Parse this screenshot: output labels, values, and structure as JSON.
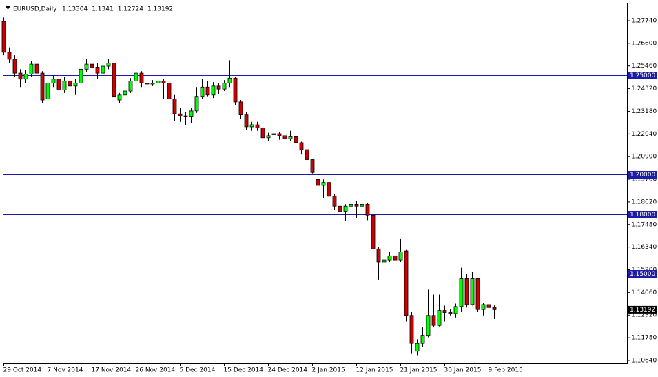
{
  "chart_data": {
    "type": "candlestick",
    "title": "EURUSD,Daily",
    "bull_color": "#00ff00",
    "bear_color": "#cc0000",
    "level_color": "#1c1ca8",
    "ylim": [
      1.105,
      1.2878
    ],
    "yticks": [
      {
        "value": 1.2774,
        "label": "1.27740"
      },
      {
        "value": 1.266,
        "label": "1.26600"
      },
      {
        "value": 1.2546,
        "label": "1.25460"
      },
      {
        "value": 1.2432,
        "label": "1.24320"
      },
      {
        "value": 1.2318,
        "label": "1.23180"
      },
      {
        "value": 1.2204,
        "label": "1.22040"
      },
      {
        "value": 1.209,
        "label": "1.20900"
      },
      {
        "value": 1.1976,
        "label": "1.19760"
      },
      {
        "value": 1.1862,
        "label": "1.18620"
      },
      {
        "value": 1.1748,
        "label": "1.17480"
      },
      {
        "value": 1.1634,
        "label": "1.16340"
      },
      {
        "value": 1.152,
        "label": "1.15200"
      },
      {
        "value": 1.1406,
        "label": "1.14060"
      },
      {
        "value": 1.1292,
        "label": "1.12920"
      },
      {
        "value": 1.1178,
        "label": "1.11780"
      },
      {
        "value": 1.1064,
        "label": "1.10640"
      }
    ],
    "levels": [
      {
        "value": 1.25,
        "label": "1.25000"
      },
      {
        "value": 1.2,
        "label": "1.20000"
      },
      {
        "value": 1.18,
        "label": "1.18000"
      },
      {
        "value": 1.15,
        "label": "1.15000"
      }
    ],
    "categories": [
      "29 Oct 2014",
      null,
      null,
      null,
      null,
      null,
      null,
      null,
      "7 Nov 2014",
      null,
      null,
      null,
      null,
      null,
      null,
      null,
      "17 Nov 2014",
      null,
      null,
      null,
      null,
      null,
      null,
      null,
      "26 Nov 2014",
      null,
      null,
      null,
      null,
      null,
      null,
      null,
      "5 Dec 2014",
      null,
      null,
      null,
      null,
      null,
      null,
      null,
      "15 Dec 2014",
      null,
      null,
      null,
      null,
      null,
      null,
      null,
      "24 Dec 2014",
      null,
      null,
      null,
      null,
      null,
      null,
      null,
      "2 Jan 2015",
      null,
      null,
      null,
      null,
      null,
      null,
      null,
      "12 Jan 2015",
      null,
      null,
      null,
      null,
      null,
      null,
      null,
      "21 Jan 2015",
      null,
      null,
      null,
      null,
      null,
      null,
      null,
      "30 Jan 2015",
      null,
      null,
      null,
      null,
      null,
      null,
      null,
      "9 Feb 2015",
      null
    ],
    "ohlc": [
      [
        1.277,
        1.279,
        1.26,
        1.2615
      ],
      [
        1.2615,
        1.264,
        1.256,
        1.258
      ],
      [
        1.258,
        1.26,
        1.249,
        1.251
      ],
      [
        1.251,
        1.253,
        1.244,
        1.248
      ],
      [
        1.248,
        1.2525,
        1.246,
        1.2505
      ],
      [
        1.2505,
        1.257,
        1.249,
        1.2555
      ],
      [
        1.2555,
        1.2565,
        1.249,
        1.251
      ],
      [
        1.251,
        1.252,
        1.236,
        1.2375
      ],
      [
        1.238,
        1.2475,
        1.2365,
        1.246
      ],
      [
        1.246,
        1.25,
        1.244,
        1.248
      ],
      [
        1.248,
        1.2495,
        1.2395,
        1.2425
      ],
      [
        1.2425,
        1.249,
        1.241,
        1.247
      ],
      [
        1.247,
        1.2485,
        1.2425,
        1.2445
      ],
      [
        1.2445,
        1.248,
        1.24,
        1.246
      ],
      [
        1.246,
        1.2545,
        1.242,
        1.253
      ],
      [
        1.253,
        1.258,
        1.2515,
        1.2555
      ],
      [
        1.2555,
        1.257,
        1.252,
        1.254
      ],
      [
        1.254,
        1.256,
        1.248,
        1.251
      ],
      [
        1.251,
        1.259,
        1.25,
        1.2545
      ],
      [
        1.2545,
        1.258,
        1.253,
        1.256
      ],
      [
        1.256,
        1.257,
        1.2375,
        1.239
      ],
      [
        1.2375,
        1.241,
        1.236,
        1.24
      ],
      [
        1.24,
        1.244,
        1.2385,
        1.242
      ],
      [
        1.242,
        1.2485,
        1.241,
        1.247
      ],
      [
        1.247,
        1.2525,
        1.2455,
        1.251
      ],
      [
        1.251,
        1.252,
        1.244,
        1.246
      ],
      [
        1.246,
        1.2475,
        1.243,
        1.2455
      ],
      [
        1.2455,
        1.2475,
        1.2445,
        1.246
      ],
      [
        1.246,
        1.25,
        1.244,
        1.247
      ],
      [
        1.247,
        1.248,
        1.238,
        1.246
      ],
      [
        1.246,
        1.247,
        1.236,
        1.238
      ],
      [
        1.238,
        1.24,
        1.227,
        1.2305
      ],
      [
        1.2305,
        1.2335,
        1.2265,
        1.2295
      ],
      [
        1.2295,
        1.2315,
        1.225,
        1.229
      ],
      [
        1.229,
        1.2335,
        1.226,
        1.232
      ],
      [
        1.232,
        1.244,
        1.231,
        1.239
      ],
      [
        1.239,
        1.248,
        1.238,
        1.244
      ],
      [
        1.244,
        1.247,
        1.239,
        1.24
      ],
      [
        1.24,
        1.2465,
        1.2385,
        1.2445
      ],
      [
        1.2445,
        1.246,
        1.2405,
        1.243
      ],
      [
        1.243,
        1.2475,
        1.242,
        1.246
      ],
      [
        1.246,
        1.2575,
        1.244,
        1.2485
      ],
      [
        1.2485,
        1.249,
        1.235,
        1.2365
      ],
      [
        1.2365,
        1.2375,
        1.228,
        1.23
      ],
      [
        1.23,
        1.2315,
        1.2225,
        1.224
      ],
      [
        1.224,
        1.2265,
        1.222,
        1.225
      ],
      [
        1.225,
        1.2265,
        1.222,
        1.2235
      ],
      [
        1.2235,
        1.2245,
        1.217,
        1.2185
      ],
      [
        1.2185,
        1.221,
        1.217,
        1.2195
      ],
      [
        1.22,
        1.2215,
        1.219,
        1.2205
      ],
      [
        1.2205,
        1.2215,
        1.2175,
        1.2195
      ],
      [
        1.2195,
        1.221,
        1.216,
        1.218
      ],
      [
        1.218,
        1.222,
        1.217,
        1.219
      ],
      [
        1.219,
        1.2195,
        1.214,
        1.216
      ],
      [
        1.216,
        1.2165,
        1.21,
        1.2125
      ],
      [
        1.2125,
        1.213,
        1.206,
        1.2075
      ],
      [
        1.2075,
        1.208,
        1.2005,
        1.201
      ],
      [
        1.1975,
        1.201,
        1.187,
        1.1945
      ],
      [
        1.1945,
        1.1975,
        1.188,
        1.196
      ],
      [
        1.196,
        1.197,
        1.186,
        1.189
      ],
      [
        1.189,
        1.19,
        1.182,
        1.184
      ],
      [
        1.184,
        1.185,
        1.177,
        1.1815
      ],
      [
        1.1815,
        1.185,
        1.1765,
        1.184
      ],
      [
        1.184,
        1.1865,
        1.183,
        1.185
      ],
      [
        1.185,
        1.1865,
        1.178,
        1.184
      ],
      [
        1.184,
        1.186,
        1.177,
        1.185
      ],
      [
        1.185,
        1.1855,
        1.177,
        1.1795
      ],
      [
        1.1795,
        1.18,
        1.1615,
        1.1625
      ],
      [
        1.1625,
        1.1635,
        1.147,
        1.156
      ],
      [
        1.156,
        1.16,
        1.1555,
        1.157
      ],
      [
        1.157,
        1.161,
        1.156,
        1.159
      ],
      [
        1.159,
        1.162,
        1.156,
        1.157
      ],
      [
        1.157,
        1.1675,
        1.156,
        1.161
      ],
      [
        1.1615,
        1.162,
        1.126,
        1.129
      ],
      [
        1.129,
        1.131,
        1.11,
        1.115
      ],
      [
        1.111,
        1.117,
        1.109,
        1.115
      ],
      [
        1.115,
        1.123,
        1.113,
        1.119
      ],
      [
        1.119,
        1.142,
        1.118,
        1.129
      ],
      [
        1.129,
        1.1395,
        1.123,
        1.124
      ],
      [
        1.124,
        1.1395,
        1.1235,
        1.1315
      ],
      [
        1.1315,
        1.134,
        1.126,
        1.1305
      ],
      [
        1.1305,
        1.132,
        1.129,
        1.13
      ],
      [
        1.13,
        1.135,
        1.128,
        1.1335
      ],
      [
        1.1335,
        1.153,
        1.131,
        1.1475
      ],
      [
        1.1475,
        1.15,
        1.133,
        1.1345
      ],
      [
        1.1345,
        1.151,
        1.134,
        1.1475
      ],
      [
        1.1475,
        1.148,
        1.131,
        1.132
      ],
      [
        1.132,
        1.1355,
        1.129,
        1.1345
      ],
      [
        1.1345,
        1.1375,
        1.1285,
        1.133
      ],
      [
        1.13304,
        1.1341,
        1.12724,
        1.13192
      ]
    ]
  }
}
